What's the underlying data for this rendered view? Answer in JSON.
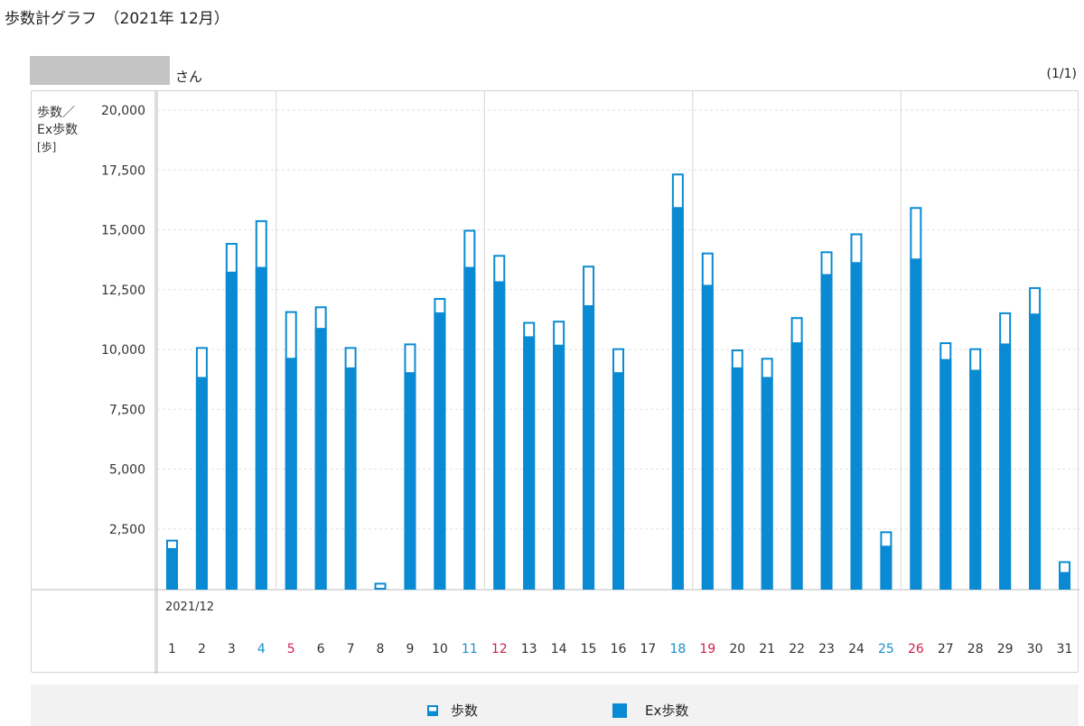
{
  "header": {
    "title": "歩数計グラフ　（2021年 12月）",
    "name_suffix": "さん",
    "page_indicator": "(1/1)"
  },
  "colors": {
    "accent": "#0a8ad2",
    "saturday": "#1a8fc9",
    "sunday": "#d0204e"
  },
  "chart_data": {
    "type": "bar",
    "ylabel_lines": [
      "歩数／",
      "Ex歩数",
      "[歩]"
    ],
    "ylim": [
      0,
      20000
    ],
    "yticks": [
      2500,
      5000,
      7500,
      10000,
      12500,
      15000,
      17500,
      20000
    ],
    "ytick_labels": [
      "2,500",
      "5,000",
      "7,500",
      "10,000",
      "12,500",
      "15,000",
      "17,500",
      "20,000"
    ],
    "period_label": "2021/12",
    "categories": [
      "1",
      "2",
      "3",
      "4",
      "5",
      "6",
      "7",
      "8",
      "9",
      "10",
      "11",
      "12",
      "13",
      "14",
      "15",
      "16",
      "17",
      "18",
      "19",
      "20",
      "21",
      "22",
      "23",
      "24",
      "25",
      "26",
      "27",
      "28",
      "29",
      "30",
      "31"
    ],
    "day_types": [
      "",
      "",
      "",
      "sat",
      "sun",
      "",
      "",
      "",
      "",
      "",
      "sat",
      "sun",
      "",
      "",
      "",
      "",
      "",
      "sat",
      "sun",
      "",
      "",
      "",
      "",
      "",
      "sat",
      "sun",
      "",
      "",
      "",
      "",
      ""
    ],
    "series": [
      {
        "name": "歩数",
        "values": [
          2050,
          10100,
          14450,
          15400,
          11600,
          11800,
          10100,
          250,
          10250,
          12150,
          15000,
          13950,
          11150,
          11200,
          13500,
          10050,
          0,
          17350,
          14050,
          10000,
          9650,
          11350,
          14100,
          14850,
          2400,
          15950,
          10300,
          10050,
          11550,
          12600,
          1150
        ]
      },
      {
        "name": "Ex歩数",
        "values": [
          1700,
          8850,
          13250,
          13450,
          9650,
          10900,
          9250,
          0,
          9050,
          11550,
          13450,
          12850,
          10550,
          10200,
          11850,
          9050,
          0,
          15950,
          12700,
          9250,
          8850,
          10300,
          13150,
          13650,
          1800,
          13800,
          9600,
          9150,
          10250,
          11500,
          700
        ]
      }
    ],
    "grid": true,
    "week_separators_after": [
      "4",
      "11",
      "18",
      "25"
    ],
    "legend": {
      "position": "bottom",
      "items": [
        "歩数",
        "Ex歩数"
      ]
    }
  }
}
